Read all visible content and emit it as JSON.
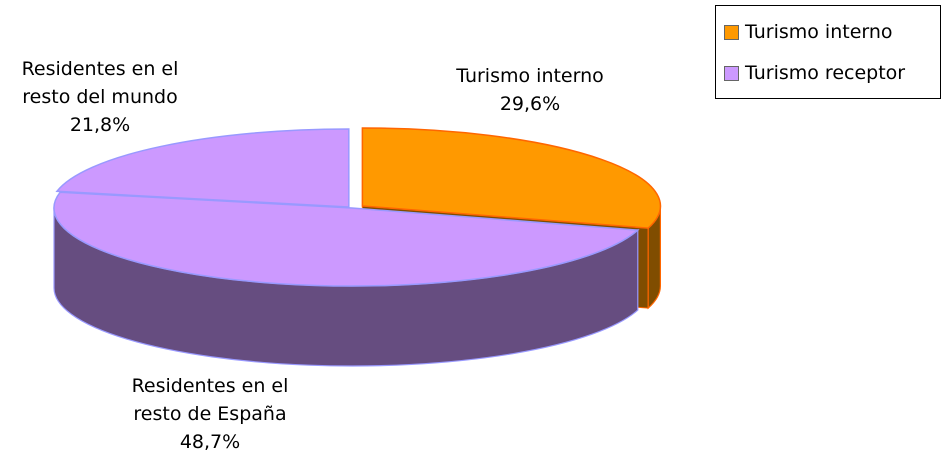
{
  "chart_data": {
    "type": "pie3d",
    "categories": [
      "Turismo interno",
      "Residentes en el resto de España",
      "Residentes en el resto del mundo"
    ],
    "values": [
      29.6,
      48.7,
      21.8
    ],
    "value_labels": [
      "29,6%",
      "48,7%",
      "21,8%"
    ],
    "colors": [
      "#ff9900",
      "#cc99ff",
      "#cc99ff"
    ],
    "legend": [
      {
        "name": "Turismo interno",
        "color": "#ff9900"
      },
      {
        "name": "Turismo receptor",
        "color": "#cc99ff"
      }
    ]
  }
}
